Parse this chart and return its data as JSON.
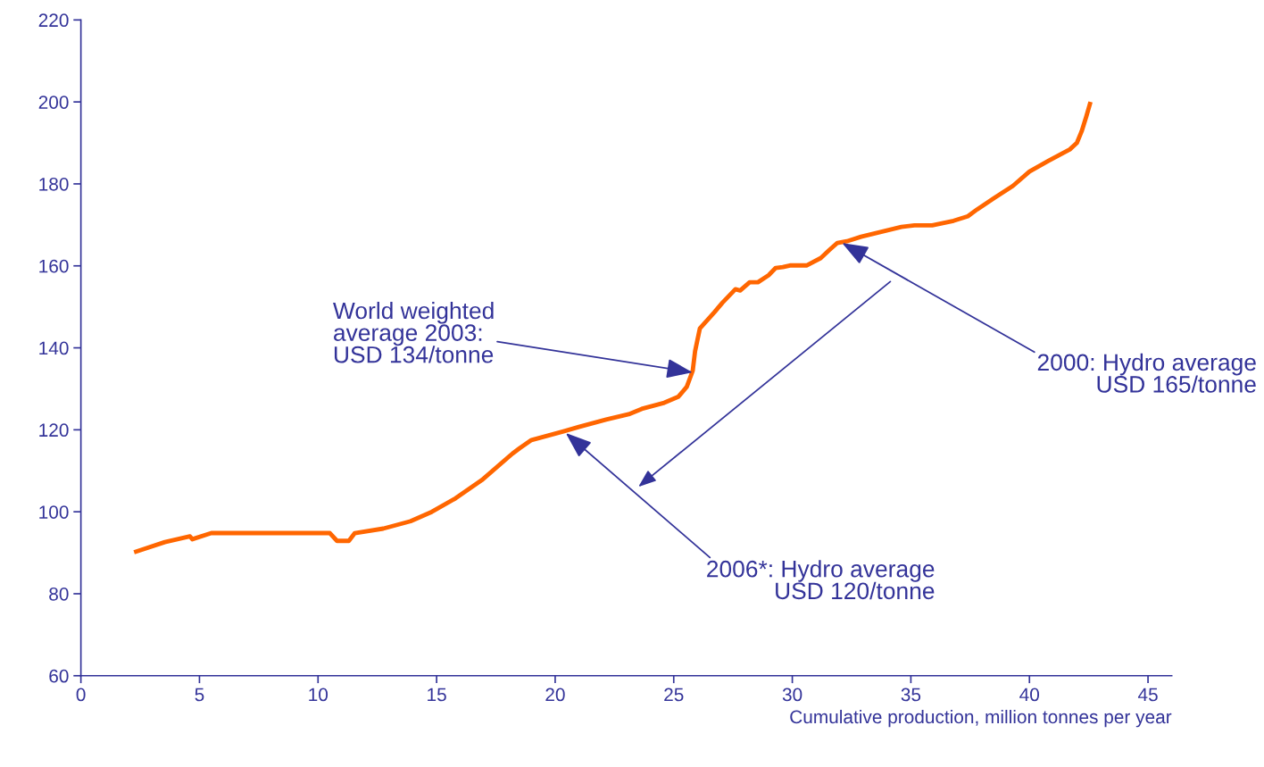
{
  "chart_data": {
    "type": "line",
    "xlabel": "Cumulative production, million tonnes per year",
    "xlim": [
      0,
      46
    ],
    "xticks": [
      0,
      5,
      10,
      15,
      20,
      25,
      30,
      35,
      40,
      45
    ],
    "ylim": [
      60,
      220
    ],
    "yticks": [
      60,
      80,
      100,
      120,
      140,
      160,
      180,
      200,
      220
    ],
    "grid": false,
    "marker": "none",
    "line_style": "solid",
    "series": [
      {
        "color": "#ff6600",
        "x": [
          2.33,
          3.54,
          4.6,
          4.7,
          5.5,
          10.5,
          10.8,
          11.3,
          11.55,
          12.75,
          13.9,
          14.8,
          15.8,
          16.9,
          18.2,
          18.5,
          19.0,
          20.35,
          21.0,
          22.15,
          23.1,
          23.65,
          24.6,
          25.2,
          25.55,
          25.8,
          25.9,
          26.1,
          26.7,
          27.05,
          27.6,
          27.8,
          28.2,
          28.55,
          29.0,
          29.3,
          29.6,
          29.9,
          30.6,
          31.2,
          31.55,
          31.9,
          32.3,
          32.9,
          34.6,
          35.15,
          35.9,
          36.8,
          37.4,
          37.8,
          38.5,
          39.3,
          40.0,
          40.8,
          41.7,
          42.0,
          42.2,
          42.4,
          42.55
        ],
        "values": [
          90.3,
          92.6,
          94,
          93.3,
          94.8,
          94.8,
          92.9,
          92.9,
          94.8,
          95.9,
          97.7,
          100,
          103.3,
          107.7,
          114.2,
          115.5,
          117.5,
          119.6,
          120.7,
          122.5,
          123.8,
          125.1,
          126.6,
          128.1,
          130.5,
          134.4,
          139.2,
          144.7,
          148.6,
          151,
          154.3,
          154,
          156,
          156,
          157.7,
          159.5,
          159.7,
          160.1,
          160.1,
          161.9,
          163.8,
          165.6,
          166,
          167.1,
          169.5,
          169.9,
          169.9,
          171,
          172.1,
          173.8,
          176.5,
          179.5,
          183,
          185.6,
          188.4,
          190,
          192.8,
          196.5,
          199.5
        ]
      }
    ],
    "annotations": [
      {
        "text": "World weighted\naverage 2003:\nUSD 134/tonne",
        "x": 25.8,
        "y": 134
      },
      {
        "text": "2000: Hydro average\nUSD 165/tonne",
        "x": 32.1,
        "y": 165.6
      },
      {
        "text": "2006*: Hydro average\nUSD 120/tonne",
        "x": 20.45,
        "y": 119.2
      }
    ]
  }
}
